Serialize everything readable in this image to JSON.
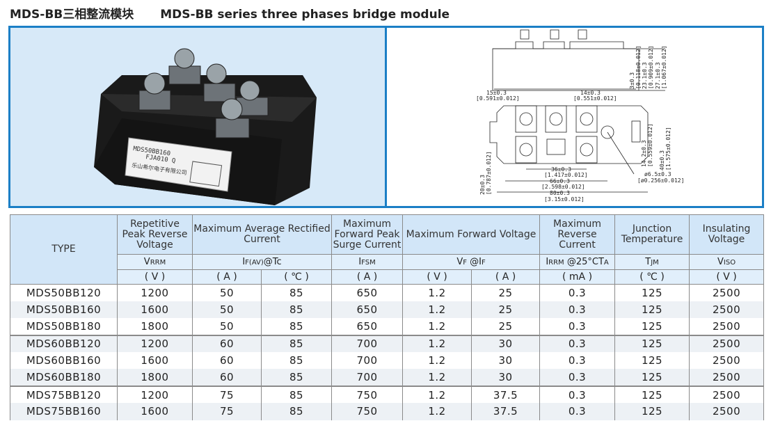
{
  "title": {
    "cn": "MDS-BB三相整流模块",
    "en": "MDS-BB series three phases bridge module"
  },
  "photo": {
    "label_model": "MDS50BB160",
    "label_code": "FJA010 Q",
    "label_company": "乐山希尔电子有限公司"
  },
  "drawing": {
    "dims": [
      "3±0.3",
      "[0.118±0.012]",
      "23.1±0.3",
      "[0.909±0.012]",
      "27.1±0.3",
      "[1.067±0.012]",
      "15±0.3",
      "[0.591±0.012]",
      "14±0.3",
      "[0.551±0.012]",
      "14.2±0.3",
      "[0.559±0.012]",
      "40±0.3",
      "[1.575±0.012]",
      "20±0.3",
      "[0.787±0.012]",
      "36±0.3",
      "[1.417±0.012]",
      "66±0.3",
      "[2.598±0.012]",
      "80±0.3",
      "[3.15±0.012]",
      "ø6.5±0.3",
      "[ø0.256±0.012]"
    ]
  },
  "table": {
    "headers": [
      "TYPE",
      "Repetitive Peak Reverse Voltage",
      "Maximum Average Rectified Current",
      "Maximum Forward Peak Surge Current",
      "Maximum Forward Voltage",
      "Maximum Reverse Current",
      "Junction Temperature",
      "Insulating Voltage"
    ],
    "symbols": [
      {
        "main": "V",
        "sub": "RRM"
      },
      {
        "main": "I",
        "sub": "F(AV)",
        "tail": "@Tc"
      },
      {
        "main": "I",
        "sub": "FSM"
      },
      {
        "main": "V",
        "sub": "F",
        "tail": " @I",
        "sub2": "F"
      },
      {
        "main": "I",
        "sub": "RRM",
        "tail": " @25°CT",
        "sub2": "A"
      },
      {
        "main": "T",
        "sub": "JM"
      },
      {
        "main": "V",
        "sub": "ISO"
      }
    ],
    "units": [
      "( V )",
      "( A )",
      "( ℃ )",
      "( A )",
      "( V )",
      "( A )",
      "( mA )",
      "( ℃ )",
      "( V )"
    ],
    "rows": [
      [
        "MDS50BB120",
        "1200",
        "50",
        "85",
        "650",
        "1.2",
        "25",
        "0.3",
        "125",
        "2500"
      ],
      [
        "MDS50BB160",
        "1600",
        "50",
        "85",
        "650",
        "1.2",
        "25",
        "0.3",
        "125",
        "2500"
      ],
      [
        "MDS50BB180",
        "1800",
        "50",
        "85",
        "650",
        "1.2",
        "25",
        "0.3",
        "125",
        "2500"
      ],
      [
        "MDS60BB120",
        "1200",
        "60",
        "85",
        "700",
        "1.2",
        "30",
        "0.3",
        "125",
        "2500"
      ],
      [
        "MDS60BB160",
        "1600",
        "60",
        "85",
        "700",
        "1.2",
        "30",
        "0.3",
        "125",
        "2500"
      ],
      [
        "MDS60BB180",
        "1800",
        "60",
        "85",
        "700",
        "1.2",
        "30",
        "0.3",
        "125",
        "2500"
      ],
      [
        "MDS75BB120",
        "1200",
        "75",
        "85",
        "750",
        "1.2",
        "37.5",
        "0.3",
        "125",
        "2500"
      ],
      [
        "MDS75BB160",
        "1600",
        "75",
        "85",
        "750",
        "1.2",
        "37.5",
        "0.3",
        "125",
        "2500"
      ]
    ]
  },
  "colors": {
    "border": "#1b7fc6",
    "header_bg": "#d2e6f8",
    "subheader_bg": "#e1effb",
    "alt_row": "#edf1f5"
  }
}
